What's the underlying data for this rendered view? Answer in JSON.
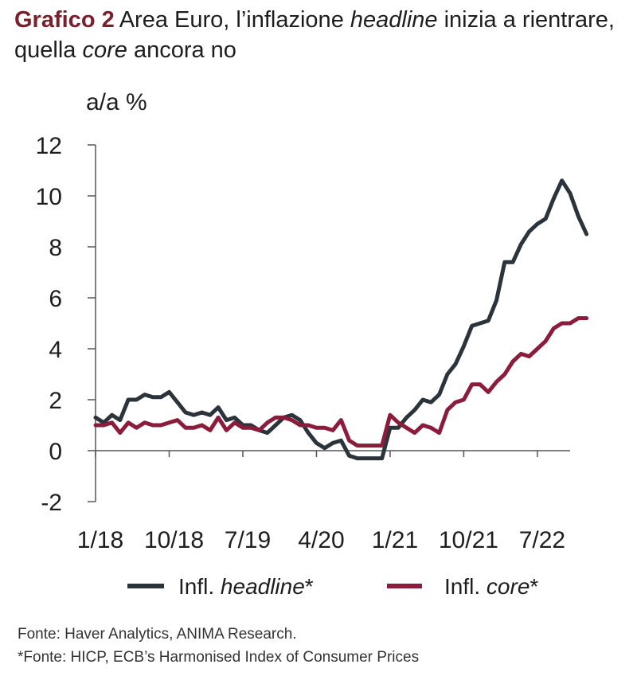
{
  "header": {
    "lead": "Grafico 2",
    "text_a": "Area Euro, l’inflazione ",
    "text_em1": "headline",
    "text_b": " inizia a rientrare, quella ",
    "text_em2": "core",
    "text_c": " ancora no"
  },
  "legend": {
    "headline_plain": "Infl. ",
    "headline_em": "headline",
    "headline_star": "*",
    "core_plain": "Infl. ",
    "core_em": "core",
    "core_star": "*"
  },
  "footer": {
    "source": "Fonte: Haver Analytics, ANIMA Research.",
    "note": "*Fonte: HICP, ECB’s Harmonised Index of Consumer Prices"
  },
  "chart_data": {
    "type": "line",
    "ylabel": "a/a %",
    "ylim": [
      -2,
      12
    ],
    "yticks": [
      "12",
      "10",
      "8",
      "6",
      "4",
      "2",
      "0",
      "-2"
    ],
    "xlim": [
      0,
      58
    ],
    "xticks": [
      {
        "label": "1/18",
        "index": 0
      },
      {
        "label": "10/18",
        "index": 9
      },
      {
        "label": "7/19",
        "index": 18
      },
      {
        "label": "4/20",
        "index": 27
      },
      {
        "label": "1/21",
        "index": 36
      },
      {
        "label": "10/21",
        "index": 45
      },
      {
        "label": "7/22",
        "index": 54
      }
    ],
    "legend_position": "bottom",
    "grid": false,
    "series": [
      {
        "name": "Infl. headline*",
        "color": "#2b343b",
        "values": [
          1.3,
          1.1,
          1.4,
          1.2,
          2.0,
          2.0,
          2.2,
          2.1,
          2.1,
          2.3,
          1.9,
          1.5,
          1.4,
          1.5,
          1.4,
          1.7,
          1.2,
          1.3,
          1.0,
          1.0,
          0.8,
          0.7,
          1.0,
          1.3,
          1.4,
          1.2,
          0.7,
          0.3,
          0.1,
          0.3,
          0.4,
          -0.2,
          -0.3,
          -0.3,
          -0.3,
          -0.3,
          0.9,
          0.9,
          1.3,
          1.6,
          2.0,
          1.9,
          2.2,
          3.0,
          3.4,
          4.1,
          4.9,
          5.0,
          5.1,
          5.9,
          7.4,
          7.4,
          8.1,
          8.6,
          8.9,
          9.1,
          9.9,
          10.6,
          10.1,
          9.2,
          8.5
        ]
      },
      {
        "name": "Infl. core*",
        "color": "#8c1c3b",
        "values": [
          1.0,
          1.0,
          1.1,
          0.7,
          1.1,
          0.9,
          1.1,
          1.0,
          1.0,
          1.1,
          1.2,
          0.9,
          0.9,
          1.0,
          0.8,
          1.3,
          0.8,
          1.1,
          0.9,
          0.9,
          0.8,
          1.1,
          1.3,
          1.3,
          1.2,
          1.0,
          1.0,
          0.9,
          0.9,
          0.8,
          1.2,
          0.4,
          0.2,
          0.2,
          0.2,
          0.2,
          1.4,
          1.1,
          0.9,
          0.7,
          1.0,
          0.9,
          0.7,
          1.6,
          1.9,
          2.0,
          2.6,
          2.6,
          2.3,
          2.7,
          3.0,
          3.5,
          3.8,
          3.7,
          4.0,
          4.3,
          4.8,
          5.0,
          5.0,
          5.2,
          5.2
        ]
      }
    ]
  }
}
